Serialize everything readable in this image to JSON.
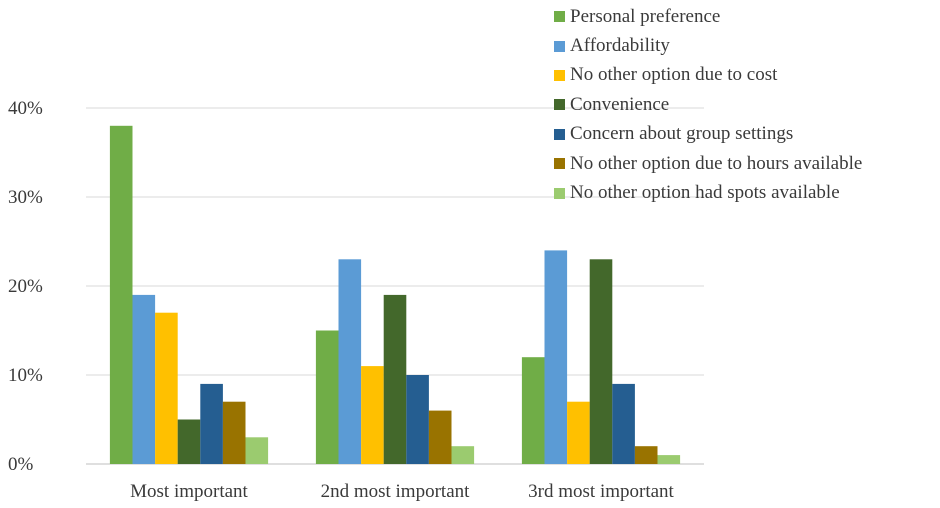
{
  "chart_data": {
    "type": "bar",
    "title": "",
    "xlabel": "",
    "ylabel": "",
    "categories": [
      "Most important",
      "2nd most important",
      "3rd most important"
    ],
    "ylim": [
      0,
      40
    ],
    "yticks": [
      "0%",
      "10%",
      "20%",
      "30%",
      "40%"
    ],
    "grid": true,
    "legend_position": "top-right",
    "series": [
      {
        "name": "Personal preference",
        "color": "#70AD47",
        "values": [
          38,
          15,
          12
        ]
      },
      {
        "name": "Affordability",
        "color": "#5B9BD5",
        "values": [
          19,
          23,
          24
        ]
      },
      {
        "name": "No other option due to cost",
        "color": "#FFC000",
        "values": [
          17,
          11,
          7
        ]
      },
      {
        "name": "Convenience",
        "color": "#43682B",
        "values": [
          5,
          19,
          23
        ]
      },
      {
        "name": "Concern about group settings",
        "color": "#255E91",
        "values": [
          9,
          10,
          9
        ]
      },
      {
        "name": "No other option due to hours available",
        "color": "#997300",
        "values": [
          7,
          6,
          2
        ]
      },
      {
        "name": "No other option had spots available",
        "color": "#9BCB6F",
        "values": [
          3,
          2,
          1
        ]
      }
    ]
  }
}
